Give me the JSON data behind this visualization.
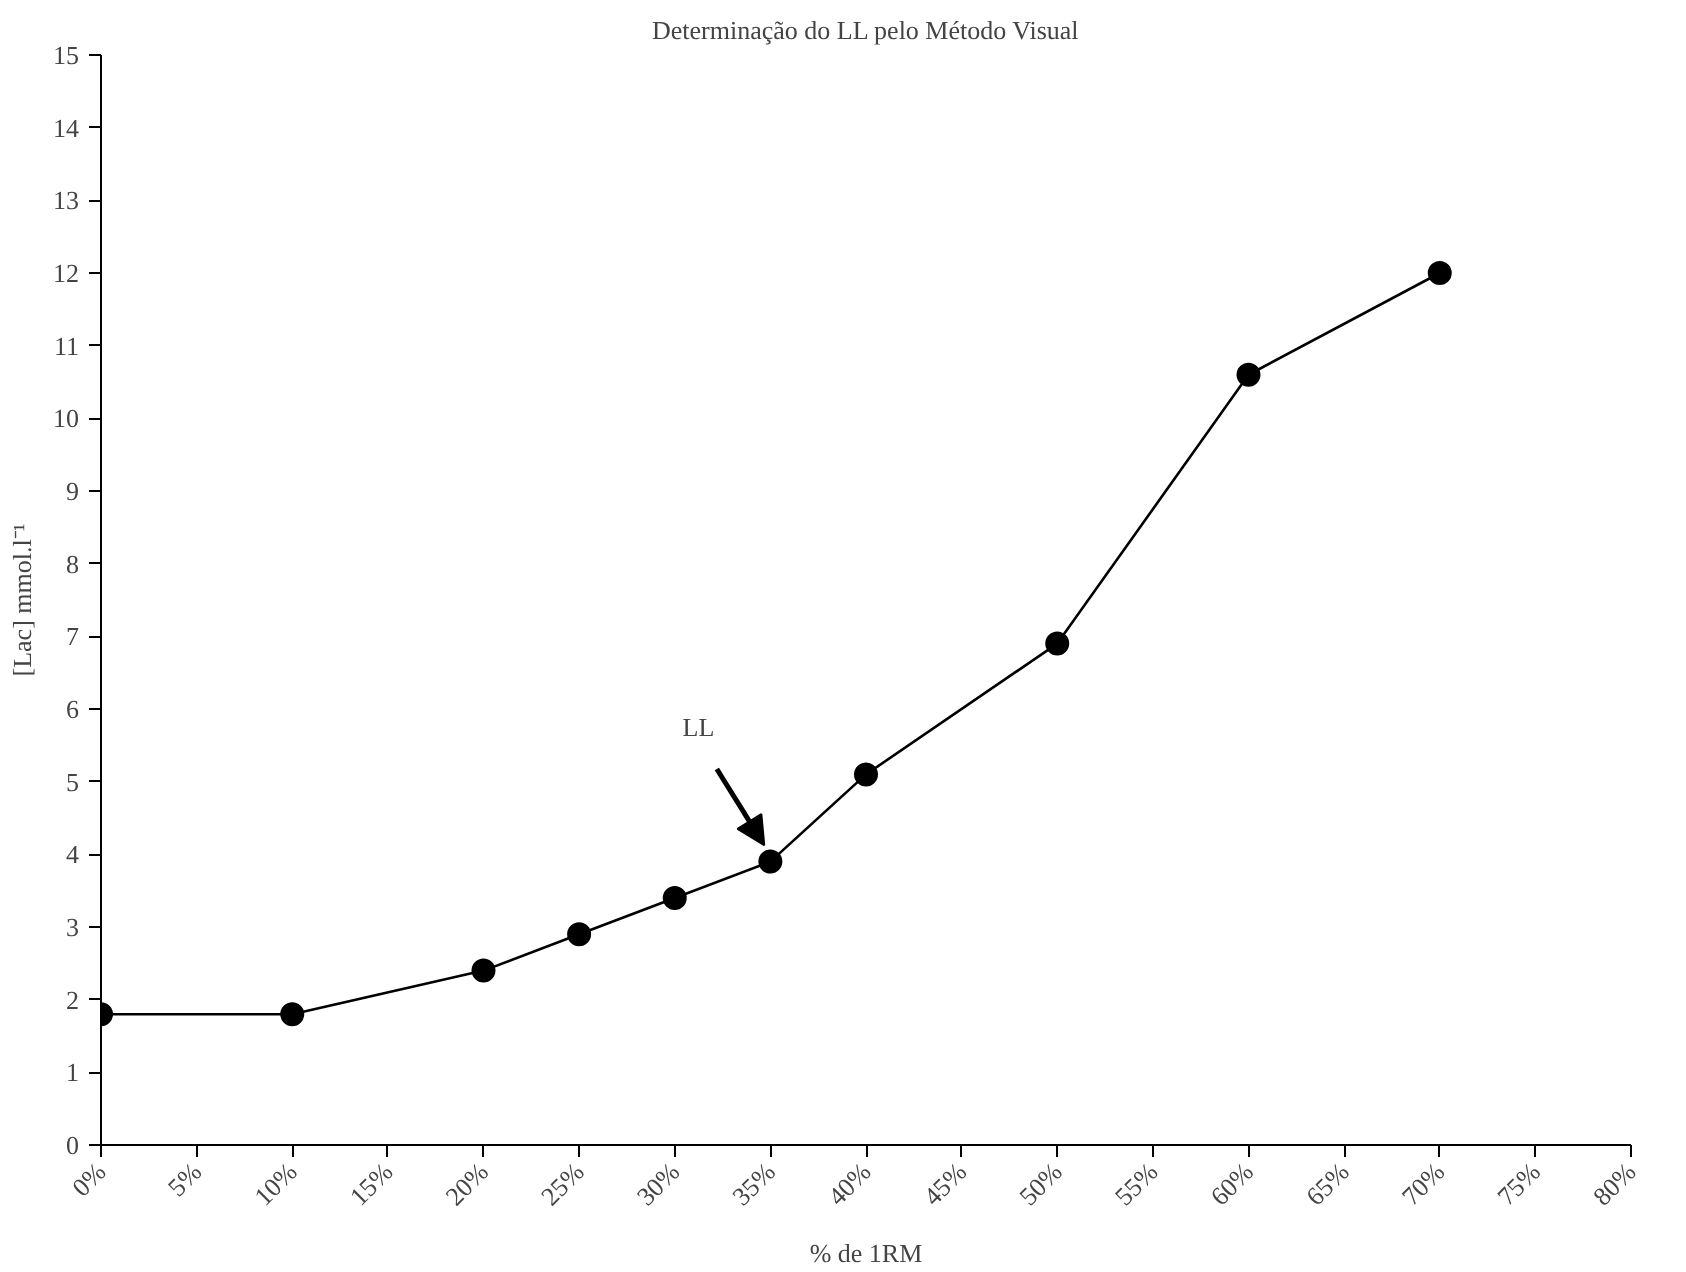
{
  "chart_data": {
    "type": "line",
    "title": "Determinação do LL pelo Método Visual",
    "xlabel": "% de 1RM",
    "ylabel": "[Lac] mmol.l⁻¹",
    "x": [
      0,
      10,
      20,
      25,
      30,
      35,
      40,
      50,
      60,
      70
    ],
    "series": [
      {
        "color": "#000000",
        "values": [
          1.8,
          1.8,
          2.4,
          2.9,
          3.4,
          3.9,
          5.1,
          6.9,
          10.6,
          12.0
        ]
      }
    ],
    "xlim": [
      0,
      80
    ],
    "xticks": [
      {
        "value": 0,
        "label": "0%"
      },
      {
        "value": 5,
        "label": "5%"
      },
      {
        "value": 10,
        "label": "10%"
      },
      {
        "value": 15,
        "label": "15%"
      },
      {
        "value": 20,
        "label": "20%"
      },
      {
        "value": 25,
        "label": "25%"
      },
      {
        "value": 30,
        "label": "30%"
      },
      {
        "value": 35,
        "label": "35%"
      },
      {
        "value": 40,
        "label": "40%"
      },
      {
        "value": 45,
        "label": "45%"
      },
      {
        "value": 50,
        "label": "50%"
      },
      {
        "value": 55,
        "label": "55%"
      },
      {
        "value": 60,
        "label": "60%"
      },
      {
        "value": 65,
        "label": "65%"
      },
      {
        "value": 70,
        "label": "70%"
      },
      {
        "value": 75,
        "label": "75%"
      },
      {
        "value": 80,
        "label": "80%"
      }
    ],
    "ylim": [
      0,
      15
    ],
    "yticks": [
      0,
      1,
      2,
      3,
      4,
      5,
      6,
      7,
      8,
      9,
      10,
      11,
      12,
      13,
      14,
      15
    ],
    "annotations": [
      {
        "text": "LL",
        "x": 35,
        "y": 3.9
      }
    ],
    "grid": false,
    "marker": "circle",
    "line_style": "solid"
  }
}
